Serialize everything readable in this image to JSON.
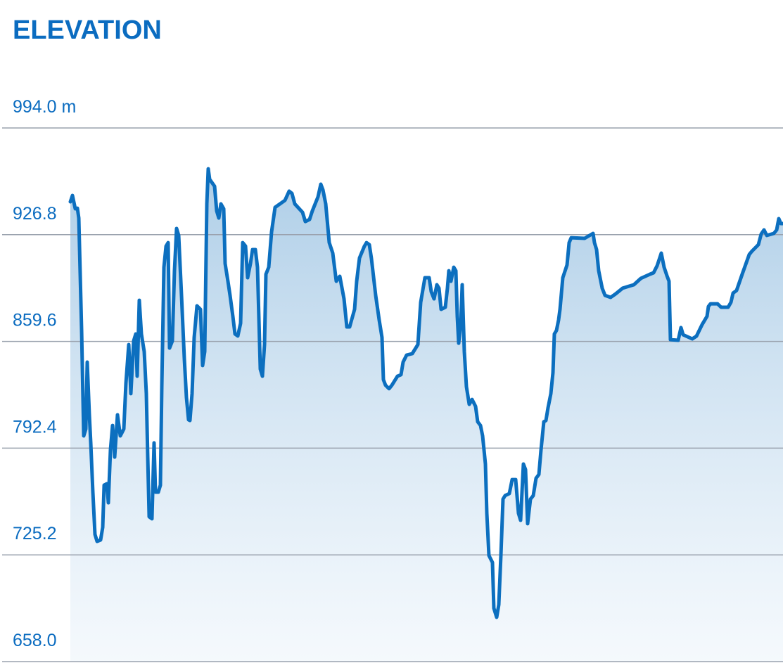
{
  "chart_data": {
    "type": "area",
    "title": "ELEVATION",
    "color": "#0c6fbf",
    "grid": true,
    "xlim": [
      0,
      1013
    ],
    "ylim": [
      658,
      994
    ],
    "yticks": [
      {
        "value": 658,
        "label": "658.0"
      },
      725.2,
      792.4,
      859.6,
      926.8,
      {
        "value": 994,
        "label": "994.0 m"
      }
    ],
    "x": [
      0,
      3,
      7,
      10,
      12,
      16,
      19,
      22,
      24,
      27,
      29,
      32,
      35,
      38,
      43,
      46,
      48,
      52,
      54,
      57,
      60,
      63,
      67,
      71,
      76,
      79,
      83,
      86,
      90,
      93,
      95,
      98,
      101,
      105,
      108,
      110,
      112,
      116,
      119,
      121,
      125,
      128,
      130,
      133,
      136,
      139,
      141,
      145,
      148,
      151,
      154,
      158,
      162,
      165,
      168,
      170,
      173,
      176,
      180,
      185,
      188,
      191,
      194,
      196,
      198,
      205,
      208,
      211,
      214,
      218,
      220,
      224,
      227,
      231,
      234,
      238,
      242,
      245,
      249,
      252,
      256,
      259,
      263,
      266,
      270,
      273,
      276,
      278,
      282,
      286,
      291,
      305,
      311,
      315,
      319,
      330,
      334,
      340,
      344,
      352,
      356,
      359,
      363,
      368,
      373,
      378,
      383,
      389,
      393,
      397,
      404,
      407,
      411,
      418,
      421,
      425,
      428,
      434,
      439,
      443,
      445,
      448,
      453,
      457,
      465,
      470,
      473,
      478,
      486,
      494,
      498,
      504,
      510,
      513,
      517,
      521,
      524,
      527,
      533,
      536,
      538,
      541,
      545,
      548,
      550,
      552,
      555,
      557,
      560,
      563,
      567,
      571,
      576,
      579,
      583,
      586,
      590,
      592,
      595,
      600,
      602,
      606,
      609,
      612,
      615,
      618,
      624,
      628,
      633,
      637,
      640,
      644,
      647,
      650,
      654,
      658,
      662,
      666,
      669,
      673,
      676,
      679,
      683,
      686,
      688,
      691,
      694,
      696,
      700,
      706,
      709,
      712,
      731,
      743,
      745,
      748,
      751,
      756,
      760,
      768,
      775,
      785,
      801,
      811,
      824,
      829,
      834,
      840,
      844,
      848,
      851,
      853,
      864,
      868,
      871,
      884,
      890,
      898,
      905,
      907,
      910,
      920,
      925,
      935,
      939,
      942,
      947,
      955,
      965,
      969,
      978,
      982,
      986,
      990,
      1000,
      1004,
      1007,
      1010,
      1013
    ],
    "values": [
      947.5,
      951.5,
      943.1,
      943.5,
      937.3,
      866.5,
      800.1,
      804.5,
      846.6,
      813.4,
      795.7,
      764.7,
      738.1,
      733.7,
      734.6,
      742.5,
      769.1,
      770,
      758,
      791.2,
      806.7,
      786.8,
      813.4,
      800.1,
      804.5,
      833.3,
      857.6,
      826.7,
      859.9,
      864.3,
      837.7,
      885.5,
      864.3,
      853.2,
      826.7,
      786.8,
      749.2,
      747.9,
      795.7,
      764.7,
      764.7,
      769.1,
      831.1,
      906.3,
      919.6,
      921.8,
      855.4,
      859.9,
      904.1,
      930.7,
      926.3,
      888.6,
      848.8,
      824.4,
      810.3,
      809.8,
      826.7,
      862.1,
      882,
      879.8,
      844.4,
      853.2,
      946.2,
      968.3,
      961.7,
      957.3,
      941.8,
      937.3,
      946.2,
      943.1,
      908.6,
      897.5,
      888.6,
      875.4,
      864.3,
      863,
      871,
      921.8,
      919.6,
      899.7,
      908.6,
      917.4,
      917.4,
      906.3,
      842.2,
      837.7,
      857.6,
      901.9,
      906.3,
      928.5,
      944,
      948.4,
      954.2,
      952.8,
      946.2,
      940.9,
      935.1,
      936.4,
      941.8,
      950.6,
      958.6,
      955.1,
      946.2,
      921.8,
      915.2,
      897.5,
      900.6,
      886.4,
      868.7,
      868.7,
      879.8,
      897.5,
      912.1,
      919.6,
      921.8,
      920.5,
      911.7,
      888.6,
      873.1,
      862.1,
      835.5,
      832,
      829.8,
      832,
      837.7,
      838.6,
      846.6,
      851,
      851.9,
      857.6,
      884.2,
      899.7,
      899.7,
      890.9,
      886.4,
      895.3,
      893.1,
      879.8,
      881.1,
      893.1,
      904.1,
      897.5,
      906.3,
      904.1,
      875.4,
      858.5,
      871,
      895.3,
      853.2,
      831.1,
      820,
      823.1,
      818.7,
      809,
      806.7,
      800.1,
      782.4,
      751.4,
      724.8,
      720.4,
      691.6,
      685.9,
      693.8,
      724.8,
      760.3,
      762.5,
      763.8,
      772.6,
      772.6,
      751.4,
      747,
      782.4,
      778.9,
      744.8,
      760.3,
      762.5,
      773.5,
      775.8,
      791.2,
      809,
      809.8,
      817.8,
      826.7,
      839.9,
      864.3,
      866.5,
      873.1,
      879.8,
      899.7,
      907.7,
      921.8,
      924.9,
      924.5,
      927.6,
      921.8,
      917.4,
      904.1,
      893.1,
      888.6,
      887.3,
      889.5,
      893.1,
      895.3,
      899.3,
      901.9,
      902.8,
      907.2,
      915.2,
      906.3,
      901,
      897.5,
      860.7,
      860.3,
      868.3,
      863.8,
      861.2,
      862.9,
      870.2,
      875.4,
      881.6,
      883.3,
      883.3,
      881.1,
      881.1,
      884.2,
      890,
      891.7,
      901.9,
      914.3,
      916.5,
      920.5,
      927.2,
      929.8,
      926.3,
      927.6,
      929.8,
      936.9,
      933.8,
      933.8
    ]
  }
}
